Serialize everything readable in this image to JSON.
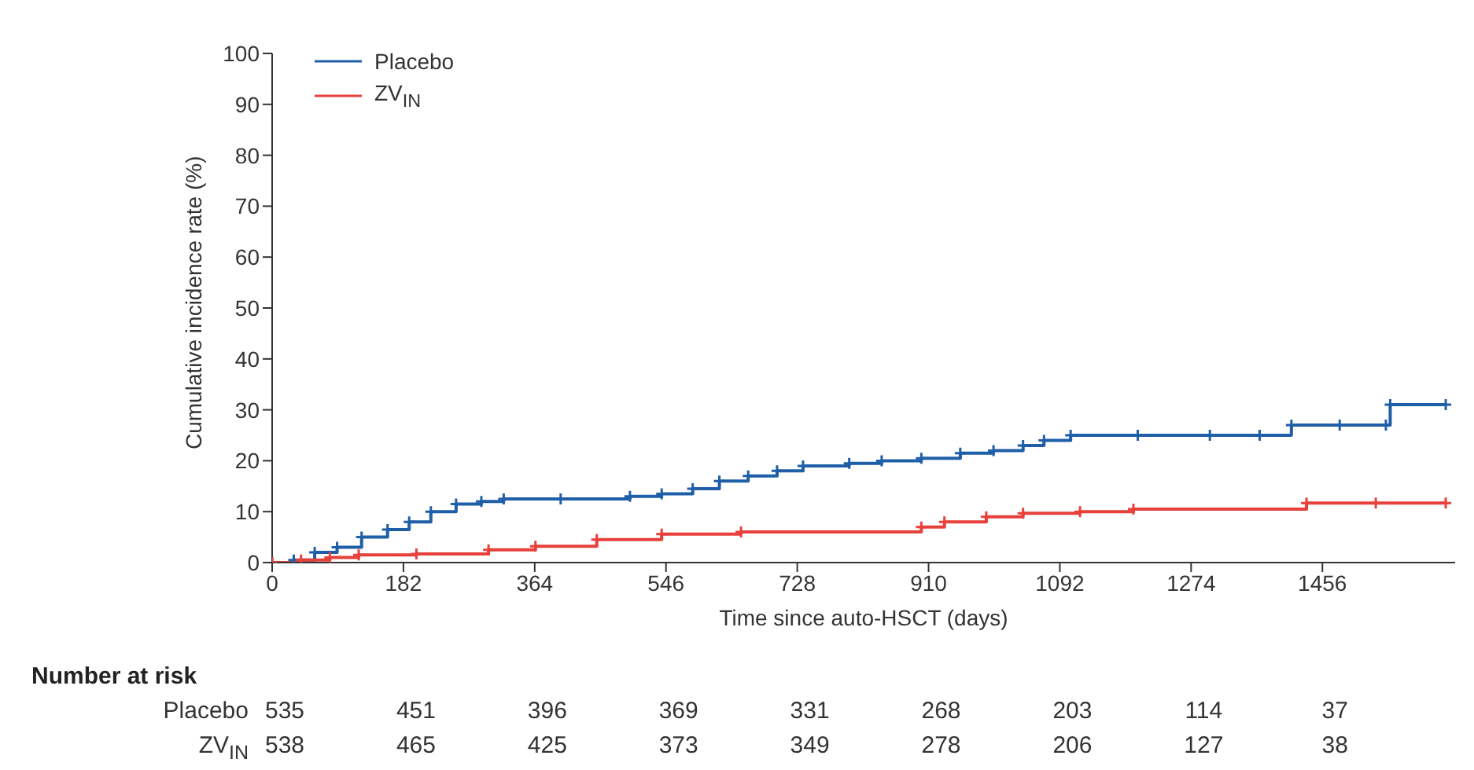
{
  "chart_data": {
    "type": "step",
    "xlabel": "Time since auto-HSCT (days)",
    "ylabel": "Cumulative incidence rate (%)",
    "series": [
      {
        "name": "Placebo",
        "color": "#1f5fa8",
        "x": [
          0,
          30,
          59,
          90,
          124,
          160,
          190,
          220,
          255,
          290,
          321,
          400,
          496,
          540,
          583,
          620,
          660,
          700,
          736,
          800,
          845,
          900,
          954,
          1000,
          1041,
          1070,
          1107,
          1200,
          1300,
          1369,
          1413,
          1480,
          1544,
          1550,
          1627
        ],
        "values": [
          0,
          0.5,
          2,
          3,
          5,
          6.5,
          8,
          10,
          11.5,
          12,
          12.5,
          12.5,
          13,
          13.5,
          14.5,
          16,
          17,
          18,
          19,
          19.5,
          20,
          20.5,
          21.5,
          22,
          23,
          24,
          25,
          25,
          25,
          25,
          27,
          27,
          27,
          31,
          31
        ]
      },
      {
        "name": "ZV$_{IN}$",
        "color": "#e8403a",
        "x": [
          0,
          40,
          80,
          120,
          200,
          300,
          365,
          450,
          540,
          650,
          900,
          932,
          990,
          1041,
          1120,
          1194,
          1434,
          1530,
          1627
        ],
        "values": [
          0,
          0.5,
          1,
          1.5,
          1.7,
          2.5,
          3.2,
          4.5,
          5.6,
          6,
          7,
          8,
          9,
          9.7,
          10,
          10.5,
          11.7,
          11.7,
          11.7
        ]
      }
    ],
    "xlim": [
      0,
      1640
    ],
    "xticks": [
      0,
      182,
      364,
      546,
      728,
      910,
      1092,
      1274,
      1456
    ],
    "ylim": [
      0,
      100
    ],
    "yticks": [
      0,
      10,
      20,
      30,
      40,
      50,
      60,
      70,
      80,
      90,
      100
    ],
    "grid": false,
    "legend": "top left",
    "marker": "cross",
    "line_style": "solid",
    "annotations": [
      "Number at risk",
      "535",
      "451",
      "396",
      "369",
      "331",
      "268",
      "203",
      "114",
      "37",
      "538",
      "465",
      "425",
      "373",
      "349",
      "278",
      "206",
      "127",
      "38"
    ]
  }
}
